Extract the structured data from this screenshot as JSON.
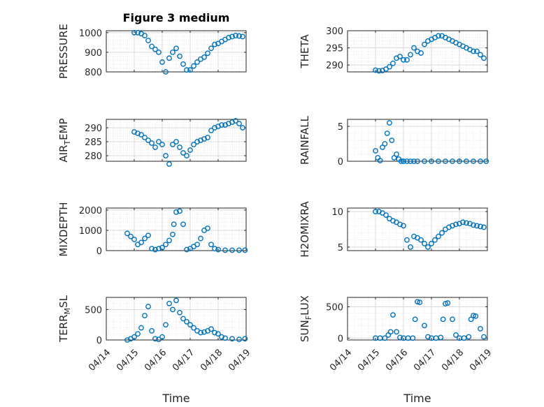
{
  "figure_title": "Figure 3 medium",
  "colors": {
    "marker": "#0072BD",
    "axis": "#262626",
    "grid": "#dedede",
    "background": "#ffffff"
  },
  "chart_data": [
    {
      "type": "scatter",
      "title": "Figure 3 medium",
      "ylabel": "PRESSURE",
      "ylabel_sub": null,
      "xlabel": "",
      "xlim": [
        "04/14",
        "04/19"
      ],
      "ylim": [
        800,
        1010
      ],
      "yticks": [
        800,
        900,
        1000
      ],
      "grid": true,
      "marker": "open-circle",
      "x": [
        "04/15 00:00",
        "04/15 03:00",
        "04/15 06:00",
        "04/15 09:00",
        "04/15 12:00",
        "04/15 15:00",
        "04/15 18:00",
        "04/15 21:00",
        "04/16 00:00",
        "04/16 03:00",
        "04/16 06:00",
        "04/16 09:00",
        "04/16 12:00",
        "04/16 15:00",
        "04/16 18:00",
        "04/16 21:00",
        "04/17 00:00",
        "04/17 03:00",
        "04/17 06:00",
        "04/17 09:00",
        "04/17 12:00",
        "04/17 15:00",
        "04/17 18:00",
        "04/17 21:00",
        "04/18 00:00",
        "04/18 03:00",
        "04/18 06:00",
        "04/18 09:00",
        "04/18 12:00",
        "04/18 15:00",
        "04/18 18:00",
        "04/18 21:00"
      ],
      "y": [
        1000,
        1000,
        995,
        985,
        960,
        930,
        915,
        900,
        850,
        800,
        870,
        900,
        920,
        880,
        840,
        810,
        810,
        830,
        850,
        865,
        875,
        895,
        920,
        940,
        945,
        955,
        965,
        975,
        980,
        985,
        983,
        980
      ]
    },
    {
      "type": "scatter",
      "title": "",
      "ylabel": "THETA",
      "ylabel_sub": null,
      "xlabel": "",
      "xlim": [
        "04/14",
        "04/19"
      ],
      "ylim": [
        288,
        300
      ],
      "yticks": [
        290,
        295,
        300
      ],
      "grid": true,
      "marker": "open-circle",
      "x": [
        "04/15 00:00",
        "04/15 03:00",
        "04/15 06:00",
        "04/15 09:00",
        "04/15 12:00",
        "04/15 15:00",
        "04/15 18:00",
        "04/15 21:00",
        "04/16 00:00",
        "04/16 03:00",
        "04/16 06:00",
        "04/16 09:00",
        "04/16 12:00",
        "04/16 15:00",
        "04/16 18:00",
        "04/16 21:00",
        "04/17 00:00",
        "04/17 03:00",
        "04/17 06:00",
        "04/17 09:00",
        "04/17 12:00",
        "04/17 15:00",
        "04/17 18:00",
        "04/17 21:00",
        "04/18 00:00",
        "04/18 03:00",
        "04/18 06:00",
        "04/18 09:00",
        "04/18 12:00",
        "04/18 15:00",
        "04/18 18:00",
        "04/18 21:00"
      ],
      "y": [
        288.5,
        288.3,
        288.4,
        288.8,
        289.5,
        290.5,
        292,
        292.5,
        291.5,
        291.5,
        293,
        295,
        294,
        293.5,
        296,
        297,
        297.5,
        298,
        298.5,
        298.5,
        298,
        297.5,
        297,
        296.5,
        296,
        295.5,
        295,
        294.5,
        294,
        294,
        293,
        292
      ]
    },
    {
      "type": "scatter",
      "title": "",
      "ylabel": "AIR",
      "ylabel_sub": "T",
      "ylabel_after": "EMP",
      "xlabel": "",
      "xlim": [
        "04/14",
        "04/19"
      ],
      "ylim": [
        278,
        293
      ],
      "yticks": [
        280,
        285,
        290
      ],
      "grid": true,
      "marker": "open-circle",
      "x": [
        "04/15 00:00",
        "04/15 03:00",
        "04/15 06:00",
        "04/15 09:00",
        "04/15 12:00",
        "04/15 15:00",
        "04/15 18:00",
        "04/15 21:00",
        "04/16 00:00",
        "04/16 03:00",
        "04/16 06:00",
        "04/16 09:00",
        "04/16 12:00",
        "04/16 15:00",
        "04/16 18:00",
        "04/16 21:00",
        "04/17 00:00",
        "04/17 03:00",
        "04/17 06:00",
        "04/17 09:00",
        "04/17 12:00",
        "04/17 15:00",
        "04/17 18:00",
        "04/17 21:00",
        "04/18 00:00",
        "04/18 03:00",
        "04/18 06:00",
        "04/18 09:00",
        "04/18 12:00",
        "04/18 15:00",
        "04/18 18:00",
        "04/18 21:00"
      ],
      "y": [
        288.5,
        288,
        287.5,
        286.5,
        285.5,
        284.5,
        283,
        285,
        284,
        280,
        277,
        284,
        285,
        283,
        281,
        280,
        282,
        284,
        285,
        285.5,
        286,
        286.5,
        289,
        290,
        290.5,
        291,
        291,
        291.5,
        292,
        292.5,
        291.5,
        290
      ]
    },
    {
      "type": "scatter",
      "title": "",
      "ylabel": "RAINFALL",
      "ylabel_sub": null,
      "xlabel": "",
      "xlim": [
        "04/14",
        "04/19"
      ],
      "ylim": [
        0,
        6
      ],
      "yticks": [
        0,
        5
      ],
      "grid": true,
      "marker": "open-circle",
      "x": [
        "04/15 00:00",
        "04/15 02:00",
        "04/15 04:00",
        "04/15 06:00",
        "04/15 08:00",
        "04/15 10:00",
        "04/15 12:00",
        "04/15 14:00",
        "04/15 16:00",
        "04/15 18:00",
        "04/15 20:00",
        "04/15 22:00",
        "04/16 00:00",
        "04/16 03:00",
        "04/16 06:00",
        "04/16 09:00",
        "04/16 12:00",
        "04/16 18:00",
        "04/17 00:00",
        "04/17 06:00",
        "04/17 12:00",
        "04/17 18:00",
        "04/18 00:00",
        "04/18 06:00",
        "04/18 12:00",
        "04/18 18:00",
        "04/18 23:00"
      ],
      "y": [
        1.5,
        0.5,
        0.1,
        2,
        2.5,
        4,
        5.5,
        3,
        0.5,
        1,
        0.3,
        0,
        0,
        0,
        0,
        0,
        0,
        0,
        0,
        0,
        0,
        0,
        0,
        0,
        0,
        0,
        0
      ]
    },
    {
      "type": "scatter",
      "title": "",
      "ylabel": "MIXDEPTH",
      "ylabel_sub": null,
      "xlabel": "",
      "xlim": [
        "04/14",
        "04/19"
      ],
      "ylim": [
        0,
        2100
      ],
      "yticks": [
        0,
        1000,
        2000
      ],
      "grid": true,
      "marker": "open-circle",
      "x": [
        "04/14 18:00",
        "04/14 21:00",
        "04/15 00:00",
        "04/15 03:00",
        "04/15 06:00",
        "04/15 09:00",
        "04/15 12:00",
        "04/15 15:00",
        "04/15 18:00",
        "04/15 21:00",
        "04/16 00:00",
        "04/16 03:00",
        "04/16 06:00",
        "04/16 09:00",
        "04/16 10:00",
        "04/16 12:00",
        "04/16 15:00",
        "04/16 18:00",
        "04/16 21:00",
        "04/17 00:00",
        "04/17 03:00",
        "04/17 06:00",
        "04/17 09:00",
        "04/17 12:00",
        "04/17 15:00",
        "04/17 18:00",
        "04/17 21:00",
        "04/18 00:00",
        "04/18 06:00",
        "04/18 12:00",
        "04/18 18:00",
        "04/18 23:00"
      ],
      "y": [
        850,
        700,
        550,
        300,
        400,
        600,
        750,
        100,
        50,
        100,
        150,
        300,
        500,
        800,
        1300,
        1900,
        1950,
        1300,
        50,
        100,
        200,
        300,
        600,
        1000,
        1100,
        300,
        100,
        50,
        20,
        20,
        20,
        20
      ]
    },
    {
      "type": "scatter",
      "title": "",
      "ylabel": "H2OMIXRA",
      "ylabel_sub": null,
      "xlabel": "",
      "xlim": [
        "04/14",
        "04/19"
      ],
      "ylim": [
        4.5,
        10.5
      ],
      "yticks": [
        5,
        10
      ],
      "grid": true,
      "marker": "open-circle",
      "x": [
        "04/15 00:00",
        "04/15 03:00",
        "04/15 06:00",
        "04/15 09:00",
        "04/15 12:00",
        "04/15 15:00",
        "04/15 18:00",
        "04/15 21:00",
        "04/16 00:00",
        "04/16 03:00",
        "04/16 06:00",
        "04/16 09:00",
        "04/16 12:00",
        "04/16 15:00",
        "04/16 18:00",
        "04/16 21:00",
        "04/17 00:00",
        "04/17 03:00",
        "04/17 06:00",
        "04/17 09:00",
        "04/17 12:00",
        "04/17 15:00",
        "04/17 18:00",
        "04/17 21:00",
        "04/18 00:00",
        "04/18 03:00",
        "04/18 06:00",
        "04/18 09:00",
        "04/18 12:00",
        "04/18 15:00",
        "04/18 18:00",
        "04/18 21:00"
      ],
      "y": [
        10,
        10,
        9.8,
        9.5,
        9,
        8.7,
        8.5,
        8.2,
        8,
        6,
        5,
        6.5,
        6.3,
        6,
        5.5,
        5,
        5.5,
        6,
        6.5,
        7,
        7.5,
        7.8,
        8,
        8.2,
        8.3,
        8.5,
        8.4,
        8.3,
        8.1,
        8,
        7.9,
        7.8
      ]
    },
    {
      "type": "scatter",
      "title": "",
      "ylabel": "TERR",
      "ylabel_sub": "M",
      "ylabel_after": "SL",
      "xlabel": "Time",
      "xlim": [
        "04/14",
        "04/19"
      ],
      "ylim": [
        0,
        700
      ],
      "yticks": [
        0,
        500
      ],
      "xticks": [
        "04/14",
        "04/15",
        "04/16",
        "04/17",
        "04/18",
        "04/19"
      ],
      "grid": true,
      "marker": "open-circle",
      "x": [
        "04/14 18:00",
        "04/14 21:00",
        "04/15 00:00",
        "04/15 03:00",
        "04/15 06:00",
        "04/15 09:00",
        "04/15 12:00",
        "04/15 15:00",
        "04/15 18:00",
        "04/15 21:00",
        "04/16 00:00",
        "04/16 03:00",
        "04/16 06:00",
        "04/16 09:00",
        "04/16 12:00",
        "04/16 15:00",
        "04/16 18:00",
        "04/16 21:00",
        "04/17 00:00",
        "04/17 03:00",
        "04/17 06:00",
        "04/17 09:00",
        "04/17 12:00",
        "04/17 15:00",
        "04/17 18:00",
        "04/17 21:00",
        "04/18 00:00",
        "04/18 03:00",
        "04/18 06:00",
        "04/18 12:00",
        "04/18 18:00",
        "04/18 23:00"
      ],
      "y": [
        0,
        20,
        50,
        100,
        200,
        400,
        550,
        150,
        20,
        10,
        50,
        250,
        600,
        500,
        650,
        450,
        350,
        300,
        250,
        200,
        150,
        120,
        130,
        150,
        180,
        120,
        100,
        50,
        30,
        20,
        10,
        20
      ]
    },
    {
      "type": "scatter",
      "title": "",
      "ylabel": "SUN",
      "ylabel_sub": "F",
      "ylabel_after": "LUX",
      "xlabel": "Time",
      "xlim": [
        "04/14",
        "04/19"
      ],
      "ylim": [
        -30,
        650
      ],
      "yticks": [
        0,
        500
      ],
      "xticks": [
        "04/14",
        "04/15",
        "04/16",
        "04/17",
        "04/18",
        "04/19"
      ],
      "grid": true,
      "marker": "open-circle",
      "x": [
        "04/15 00:00",
        "04/15 04:00",
        "04/15 08:00",
        "04/15 11:00",
        "04/15 13:00",
        "04/15 15:00",
        "04/15 18:00",
        "04/15 21:00",
        "04/16 00:00",
        "04/16 04:00",
        "04/16 08:00",
        "04/16 10:00",
        "04/16 12:00",
        "04/16 14:00",
        "04/16 18:00",
        "04/16 21:00",
        "04/17 00:00",
        "04/17 04:00",
        "04/17 08:00",
        "04/17 10:00",
        "04/17 12:00",
        "04/17 14:00",
        "04/17 18:00",
        "04/17 21:00",
        "04/18 00:00",
        "04/18 04:00",
        "04/18 08:00",
        "04/18 10:00",
        "04/18 12:00",
        "04/18 14:00",
        "04/18 18:00",
        "04/18 21:00"
      ],
      "y": [
        0,
        0,
        0,
        50,
        100,
        370,
        100,
        10,
        0,
        0,
        0,
        300,
        580,
        570,
        200,
        20,
        0,
        0,
        10,
        300,
        550,
        560,
        300,
        50,
        0,
        0,
        20,
        300,
        360,
        350,
        150,
        20
      ]
    }
  ]
}
